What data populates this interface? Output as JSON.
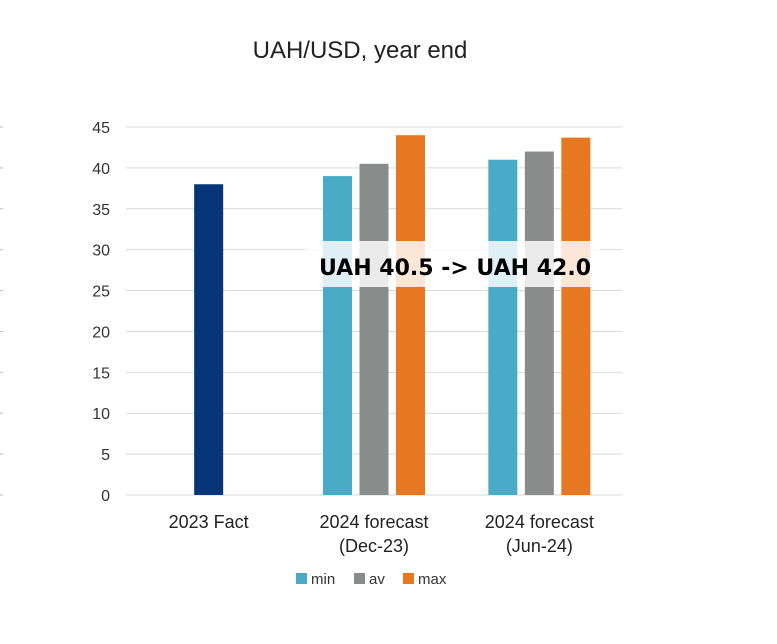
{
  "chart_data": {
    "type": "bar",
    "title": "UAH/USD, year end",
    "categories": [
      "2023 Fact",
      "2024 forecast\n(Dec-23)",
      "2024 forecast\n(Jun-24)"
    ],
    "fact_series": {
      "values": [
        38,
        null,
        null
      ],
      "color": "#06357A"
    },
    "series": [
      {
        "name": "min",
        "values": [
          null,
          39,
          41
        ],
        "color": "#4AABC6"
      },
      {
        "name": "av",
        "values": [
          null,
          40.5,
          42
        ],
        "color": "#8A8C8C"
      },
      {
        "name": "max",
        "values": [
          null,
          44,
          43.7
        ],
        "color": "#E87722"
      }
    ],
    "ylim": [
      0,
      45
    ],
    "yticks": [
      0,
      5,
      10,
      15,
      20,
      25,
      30,
      35,
      40,
      45
    ],
    "grid": true,
    "legend": "bottom",
    "annotation": "UAH 40.5 -> UAH 42.0"
  }
}
